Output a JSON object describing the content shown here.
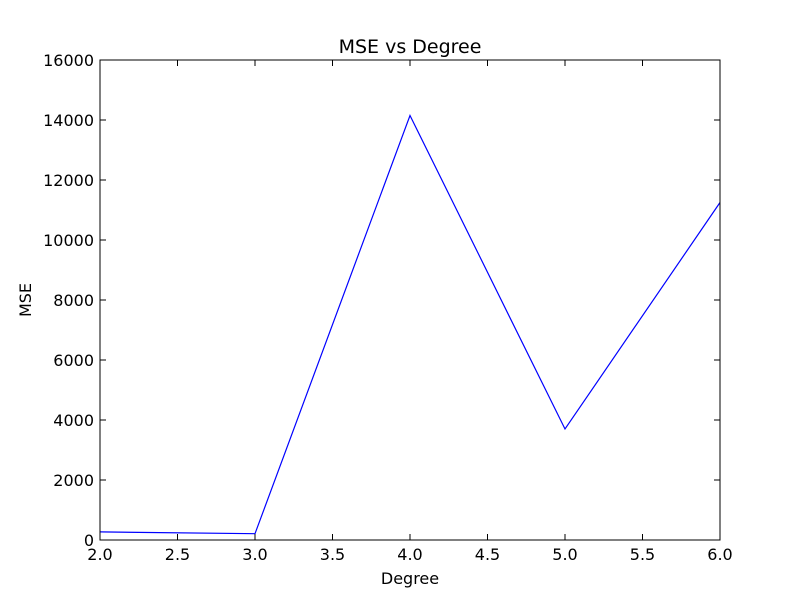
{
  "chart_data": {
    "type": "line",
    "title": "MSE vs Degree",
    "xlabel": "Degree",
    "ylabel": "MSE",
    "xlim": [
      2.0,
      6.0
    ],
    "ylim": [
      0,
      16000
    ],
    "grid": false,
    "x_ticks": [
      "2.0",
      "2.5",
      "3.0",
      "3.5",
      "4.0",
      "4.5",
      "5.0",
      "5.5",
      "6.0"
    ],
    "y_ticks": [
      "0",
      "2000",
      "4000",
      "6000",
      "8000",
      "10000",
      "12000",
      "14000",
      "16000"
    ],
    "series": [
      {
        "color": "#0000ff",
        "x": [
          2,
          3,
          4,
          5,
          6
        ],
        "y": [
          270,
          210,
          14150,
          3700,
          11250
        ]
      }
    ]
  }
}
